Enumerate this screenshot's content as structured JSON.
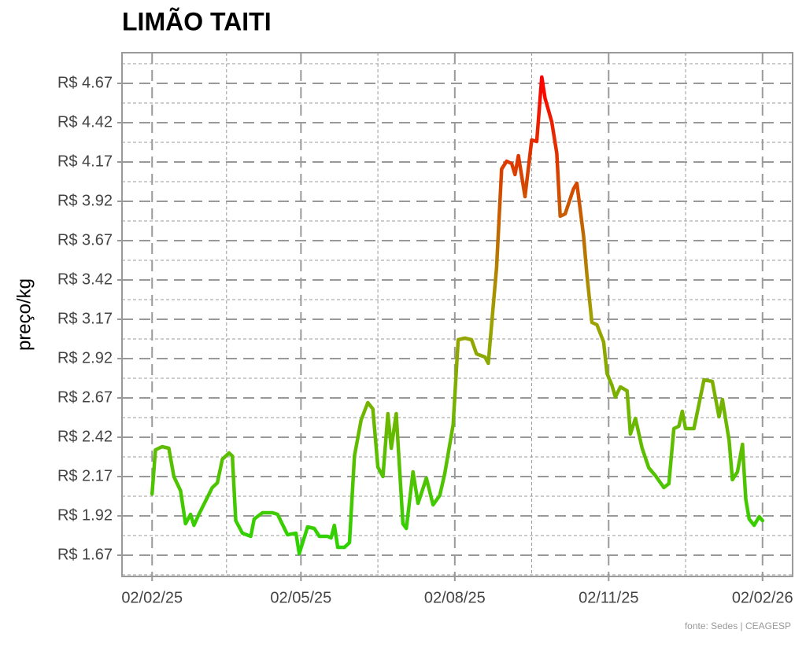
{
  "chart_data": {
    "type": "line",
    "title": "LIMÃO TAITI",
    "y_label": "preço/kg",
    "source": "fonte: Sedes | CEAGESP",
    "x": [
      "2025-02-02",
      "2025-02-04",
      "2025-02-08",
      "2025-02-12",
      "2025-02-15",
      "2025-02-19",
      "2025-02-22",
      "2025-02-25",
      "2025-02-27",
      "2025-03-02",
      "2025-03-10",
      "2025-03-13",
      "2025-03-16",
      "2025-03-20",
      "2025-03-22",
      "2025-03-24",
      "2025-03-28",
      "2025-04-02",
      "2025-04-04",
      "2025-04-09",
      "2025-04-15",
      "2025-04-18",
      "2025-04-24",
      "2025-04-29",
      "2025-05-01",
      "2025-05-06",
      "2025-05-10",
      "2025-05-13",
      "2025-05-18",
      "2025-05-20",
      "2025-05-22",
      "2025-05-24",
      "2025-05-28",
      "2025-05-31",
      "2025-06-03",
      "2025-06-07",
      "2025-06-11",
      "2025-06-14",
      "2025-06-17",
      "2025-06-20",
      "2025-06-23",
      "2025-06-25",
      "2025-06-28",
      "2025-07-02",
      "2025-07-04",
      "2025-07-08",
      "2025-07-11",
      "2025-07-16",
      "2025-07-20",
      "2025-07-24",
      "2025-07-27",
      "2025-08-01",
      "2025-08-04",
      "2025-08-08",
      "2025-08-12",
      "2025-08-15",
      "2025-08-20",
      "2025-08-22",
      "2025-08-27",
      "2025-08-30",
      "2025-09-02",
      "2025-09-05",
      "2025-09-07",
      "2025-09-09",
      "2025-09-13",
      "2025-09-17",
      "2025-09-20",
      "2025-09-23",
      "2025-09-25",
      "2025-09-29",
      "2025-10-02",
      "2025-10-04",
      "2025-10-07",
      "2025-10-12",
      "2025-10-14",
      "2025-10-18",
      "2025-10-20",
      "2025-10-23",
      "2025-10-26",
      "2025-10-30",
      "2025-11-01",
      "2025-11-04",
      "2025-11-06",
      "2025-11-09",
      "2025-11-13",
      "2025-11-15",
      "2025-11-18",
      "2025-11-22",
      "2025-11-26",
      "2025-11-30",
      "2025-12-05",
      "2025-12-08",
      "2025-12-11",
      "2025-12-14",
      "2025-12-16",
      "2025-12-18",
      "2025-12-23",
      "2025-12-29",
      "2026-01-03",
      "2026-01-07",
      "2026-01-09",
      "2026-01-13",
      "2026-01-15",
      "2026-01-18",
      "2026-01-21",
      "2026-01-23",
      "2026-01-25",
      "2026-01-28",
      "2026-01-31",
      "2026-02-02"
    ],
    "values": [
      2.06,
      2.34,
      2.36,
      2.35,
      2.17,
      2.08,
      1.87,
      1.93,
      1.86,
      1.93,
      2.1,
      2.13,
      2.28,
      2.32,
      2.3,
      1.89,
      1.81,
      1.79,
      1.9,
      1.94,
      1.94,
      1.93,
      1.8,
      1.81,
      1.68,
      1.85,
      1.84,
      1.79,
      1.79,
      1.78,
      1.86,
      1.72,
      1.72,
      1.75,
      2.3,
      2.53,
      2.64,
      2.6,
      2.23,
      2.17,
      2.57,
      2.35,
      2.57,
      1.87,
      1.84,
      2.2,
      2.0,
      2.16,
      1.99,
      2.05,
      2.19,
      2.5,
      3.04,
      3.05,
      3.04,
      2.95,
      2.93,
      2.89,
      3.5,
      4.125,
      4.175,
      4.16,
      4.09,
      4.21,
      3.95,
      4.31,
      4.3,
      4.71,
      4.575,
      4.425,
      4.225,
      3.825,
      3.84,
      4.0,
      4.035,
      3.7,
      3.45,
      3.15,
      3.135,
      3.025,
      2.825,
      2.75,
      2.675,
      2.74,
      2.715,
      2.44,
      2.54,
      2.35,
      2.225,
      2.175,
      2.1,
      2.125,
      2.475,
      2.49,
      2.585,
      2.475,
      2.475,
      2.785,
      2.775,
      2.55,
      2.66,
      2.4,
      2.15,
      2.2,
      2.375,
      2.025,
      1.9,
      1.86,
      1.915,
      1.89
    ],
    "colors": [
      "#2ad400",
      "#a0a000",
      "#ff0000"
    ],
    "xlim": [
      "2025-01-15",
      "2026-02-20"
    ],
    "xticks": [
      {
        "value": "2025-02-02",
        "label": "02/02/25"
      },
      {
        "value": "2025-05-02",
        "label": "02/05/25"
      },
      {
        "value": "2025-08-02",
        "label": "02/08/25"
      },
      {
        "value": "2025-11-02",
        "label": "02/11/25"
      },
      {
        "value": "2026-02-02",
        "label": "02/02/26"
      }
    ],
    "ylim": [
      1.535,
      4.865
    ],
    "yticks": [
      {
        "value": 1.67,
        "label": "R$ 1.67"
      },
      {
        "value": 1.92,
        "label": "R$ 1.92"
      },
      {
        "value": 2.17,
        "label": "R$ 2.17"
      },
      {
        "value": 2.42,
        "label": "R$ 2.42"
      },
      {
        "value": 2.67,
        "label": "R$ 2.67"
      },
      {
        "value": 2.92,
        "label": "R$ 2.92"
      },
      {
        "value": 3.17,
        "label": "R$ 3.17"
      },
      {
        "value": 3.42,
        "label": "R$ 3.42"
      },
      {
        "value": 3.67,
        "label": "R$ 3.67"
      },
      {
        "value": 3.92,
        "label": "R$ 3.92"
      },
      {
        "value": 4.17,
        "label": "R$ 4.17"
      },
      {
        "value": 4.42,
        "label": "R$ 4.42"
      },
      {
        "value": 4.67,
        "label": "R$ 4.67"
      }
    ],
    "grid": true
  }
}
